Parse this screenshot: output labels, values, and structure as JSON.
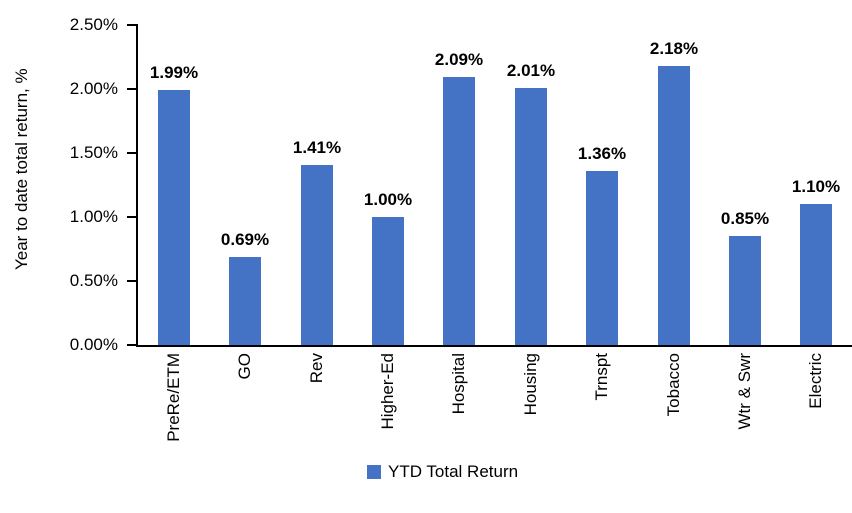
{
  "chart_data": {
    "type": "bar",
    "categories": [
      "PreRe/ETM",
      "GO",
      "Rev",
      "Higher-Ed",
      "Hospital",
      "Housing",
      "Trnspt",
      "Tobacco",
      "Wtr & Swr",
      "Electric"
    ],
    "values": [
      1.99,
      0.69,
      1.41,
      1.0,
      2.09,
      2.01,
      1.36,
      2.18,
      0.85,
      1.1
    ],
    "data_labels": [
      "1.99%",
      "0.69%",
      "1.41%",
      "1.00%",
      "2.09%",
      "2.01%",
      "1.36%",
      "2.18%",
      "0.85%",
      "1.10%"
    ],
    "ylabel": "Year to date total return, %",
    "xlabel": "",
    "ylim": [
      0,
      2.5
    ],
    "ytick_values": [
      0,
      0.5,
      1.0,
      1.5,
      2.0,
      2.5
    ],
    "ytick_labels": [
      "0.00%",
      "0.50%",
      "1.00%",
      "1.50%",
      "2.00%",
      "2.50%"
    ],
    "grid": false,
    "legend_position": "bottom",
    "legend": [
      {
        "label": "YTD Total Return",
        "color": "#4472C4"
      }
    ],
    "bar_color": "#4472C4",
    "axis_color": "#000000"
  }
}
